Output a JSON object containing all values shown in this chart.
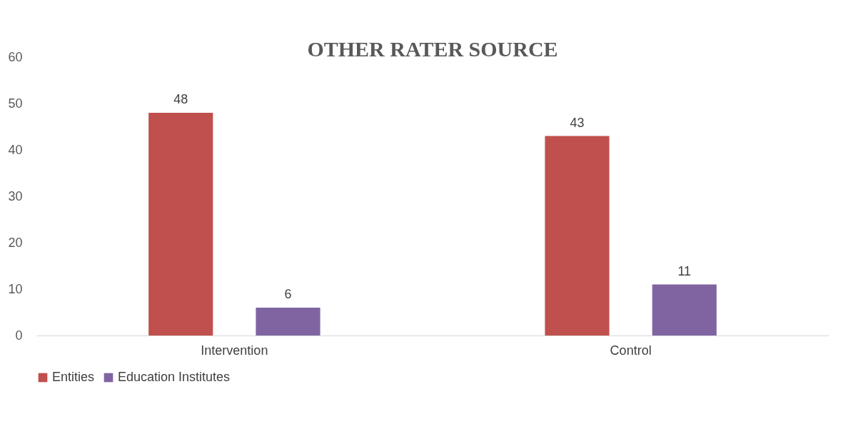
{
  "chart_data": {
    "type": "bar",
    "title": "OTHER RATER SOURCE",
    "categories": [
      "Intervention",
      "Control"
    ],
    "series": [
      {
        "name": "Entities",
        "color": "#c0504d",
        "values": [
          48,
          43
        ]
      },
      {
        "name": "Education Institutes",
        "color": "#8064a2",
        "values": [
          6,
          11
        ]
      }
    ],
    "ylim": [
      0,
      60
    ],
    "yticks": [
      0,
      10,
      20,
      30,
      40,
      50,
      60
    ],
    "data_labels": true,
    "legend": "bottom",
    "grid": false
  }
}
